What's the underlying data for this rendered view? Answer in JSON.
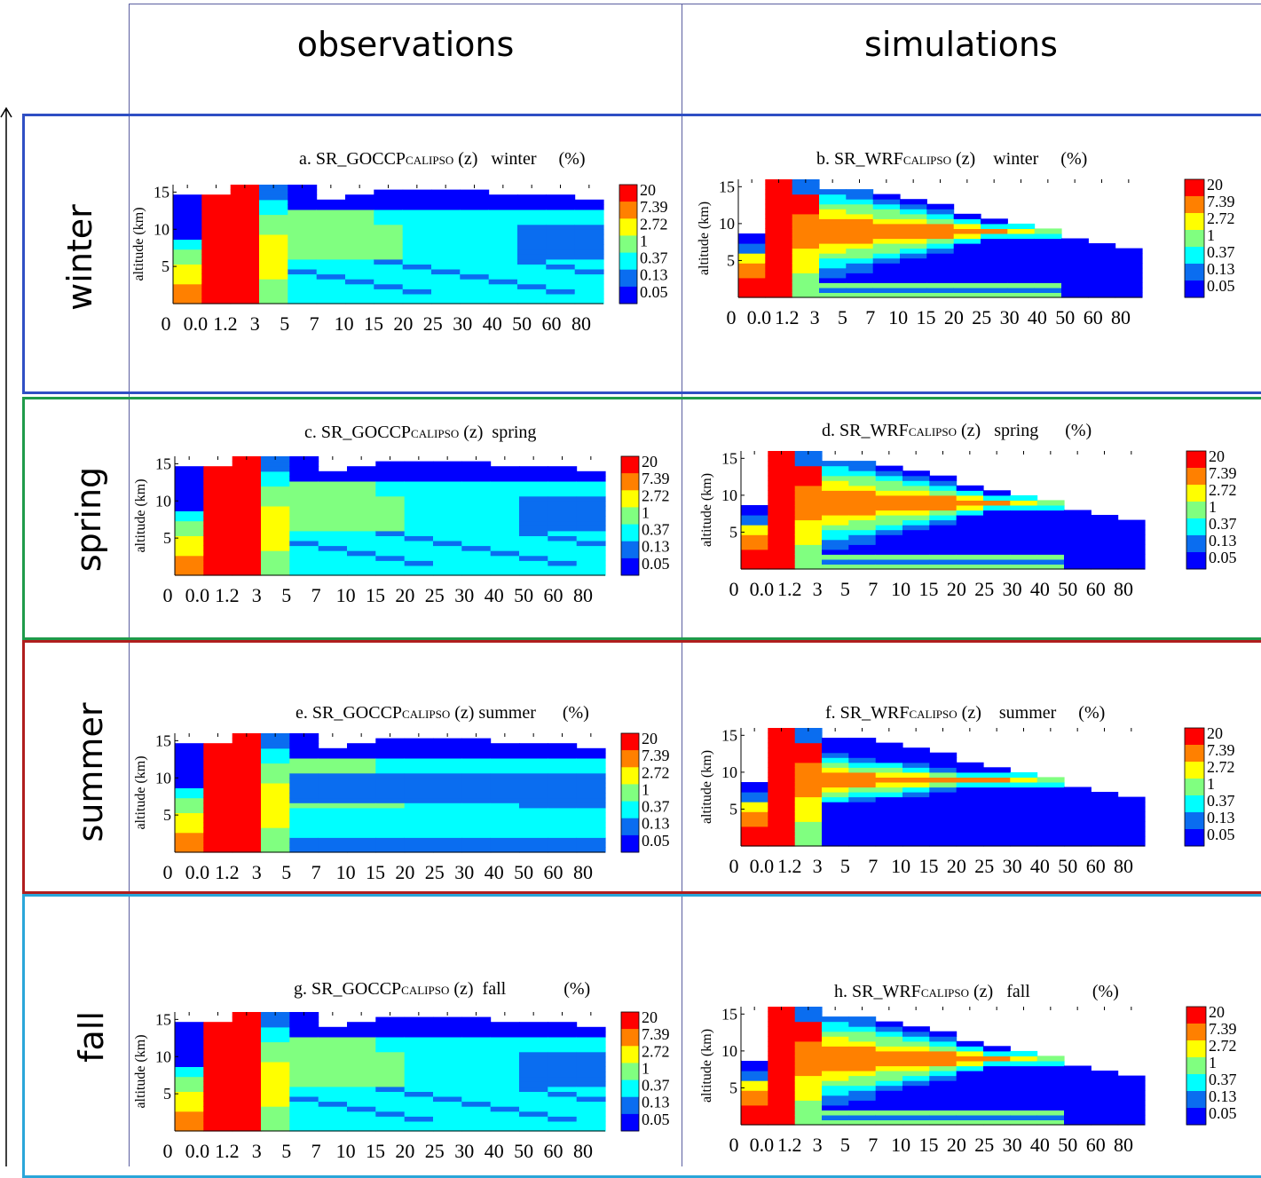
{
  "columns": {
    "left": "observations",
    "right": "simulations"
  },
  "rows": [
    {
      "season": "winter"
    },
    {
      "season": "spring"
    },
    {
      "season": "summer"
    },
    {
      "season": "fall"
    }
  ],
  "colors": {
    "winter_frame": "#2f4fc4",
    "spring_frame": "#1f9b4a",
    "summer_frame": "#b01e1e",
    "fall_frame": "#2aa6d9",
    "grid_line": "#5b5fa0"
  },
  "chart_data": [
    {
      "id": "a",
      "type": "heatmap",
      "title_prefix": "a. SR_GOCCP",
      "title_sub": "CALIPSO",
      "title_z": "(z)",
      "title_season": "winter",
      "title_unit": "(%)",
      "ylabel": "altitude (km)",
      "yticks": [
        "5",
        "10",
        "15"
      ],
      "xticks": [
        "0",
        "0.0",
        "1.2",
        "3",
        "5",
        "7",
        "10",
        "15",
        "20",
        "25",
        "30",
        "40",
        "50",
        "60",
        "80"
      ],
      "colorbar": [
        "20",
        "7.39",
        "2.72",
        "1",
        "0.37",
        "0.13",
        "0.05"
      ]
    },
    {
      "id": "b",
      "type": "heatmap",
      "title_prefix": "b. SR_WRF",
      "title_sub": "CALIPSO",
      "title_z": "(z)",
      "title_season": "winter",
      "title_unit": "(%)",
      "ylabel": "altitude (km)",
      "yticks": [
        "5",
        "10",
        "15"
      ],
      "xticks": [
        "0",
        "0.0",
        "1.2",
        "3",
        "5",
        "7",
        "10",
        "15",
        "20",
        "25",
        "30",
        "40",
        "50",
        "60",
        "80"
      ],
      "colorbar": [
        "20",
        "7.39",
        "2.72",
        "1",
        "0.37",
        "0.13",
        "0.05"
      ]
    },
    {
      "id": "c",
      "type": "heatmap",
      "title_prefix": "c. SR_GOCCP",
      "title_sub": "CALIPSO",
      "title_z": "(z)",
      "title_season": "spring",
      "title_unit": "",
      "ylabel": "altitude (km)",
      "yticks": [
        "5",
        "10",
        "15"
      ],
      "xticks": [
        "0",
        "0.0",
        "1.2",
        "3",
        "5",
        "7",
        "10",
        "15",
        "20",
        "25",
        "30",
        "40",
        "50",
        "60",
        "80"
      ],
      "colorbar": [
        "20",
        "7.39",
        "2.72",
        "1",
        "0.37",
        "0.13",
        "0.05"
      ]
    },
    {
      "id": "d",
      "type": "heatmap",
      "title_prefix": "d. SR_WRF",
      "title_sub": "CALIPSO",
      "title_z": "(z)",
      "title_season": "spring",
      "title_unit": "(%)",
      "ylabel": "altitude (km)",
      "yticks": [
        "5",
        "10",
        "15"
      ],
      "xticks": [
        "0",
        "0.0",
        "1.2",
        "3",
        "5",
        "7",
        "10",
        "15",
        "20",
        "25",
        "30",
        "40",
        "50",
        "60",
        "80"
      ],
      "colorbar": [
        "20",
        "7.39",
        "2.72",
        "1",
        "0.37",
        "0.13",
        "0.05"
      ]
    },
    {
      "id": "e",
      "type": "heatmap",
      "title_prefix": "e. SR_GOCCP",
      "title_sub": "CALIPSO",
      "title_z": "(z)",
      "title_season": "summer",
      "title_unit": "(%)",
      "ylabel": "altitude (km)",
      "yticks": [
        "5",
        "10",
        "15"
      ],
      "xticks": [
        "0",
        "0.0",
        "1.2",
        "3",
        "5",
        "7",
        "10",
        "15",
        "20",
        "25",
        "30",
        "40",
        "50",
        "60",
        "80"
      ],
      "colorbar": [
        "20",
        "7.39",
        "2.72",
        "1",
        "0.37",
        "0.13",
        "0.05"
      ]
    },
    {
      "id": "f",
      "type": "heatmap",
      "title_prefix": "f. SR_WRF",
      "title_sub": "CALIPSO",
      "title_z": "(z)",
      "title_season": "summer",
      "title_unit": "(%)",
      "ylabel": "altitude (km)",
      "yticks": [
        "5",
        "10",
        "15"
      ],
      "xticks": [
        "0",
        "0.0",
        "1.2",
        "3",
        "5",
        "7",
        "10",
        "15",
        "20",
        "25",
        "30",
        "40",
        "50",
        "60",
        "80"
      ],
      "colorbar": [
        "20",
        "7.39",
        "2.72",
        "1",
        "0.37",
        "0.13",
        "0.05"
      ]
    },
    {
      "id": "g",
      "type": "heatmap",
      "title_prefix": "g. SR_GOCCP",
      "title_sub": "CALIPSO",
      "title_z": "(z)",
      "title_season": "fall",
      "title_unit": "(%)",
      "ylabel": "altitude (km)",
      "yticks": [
        "5",
        "10",
        "15"
      ],
      "xticks": [
        "0",
        "0.0",
        "1.2",
        "3",
        "5",
        "7",
        "10",
        "15",
        "20",
        "25",
        "30",
        "40",
        "50",
        "60",
        "80"
      ],
      "colorbar": [
        "20",
        "7.39",
        "2.72",
        "1",
        "0.37",
        "0.13",
        "0.05"
      ]
    },
    {
      "id": "h",
      "type": "heatmap",
      "title_prefix": "h. SR_WRF",
      "title_sub": "CALIPSO",
      "title_z": "(z)",
      "title_season": "fall",
      "title_unit": "(%)",
      "ylabel": "altitude (km)",
      "yticks": [
        "5",
        "10",
        "15"
      ],
      "xticks": [
        "0",
        "0.0",
        "1.2",
        "3",
        "5",
        "7",
        "10",
        "15",
        "20",
        "25",
        "30",
        "40",
        "50",
        "60",
        "80"
      ],
      "colorbar": [
        "20",
        "7.39",
        "2.72",
        "1",
        "0.37",
        "0.13",
        "0.05"
      ]
    }
  ]
}
